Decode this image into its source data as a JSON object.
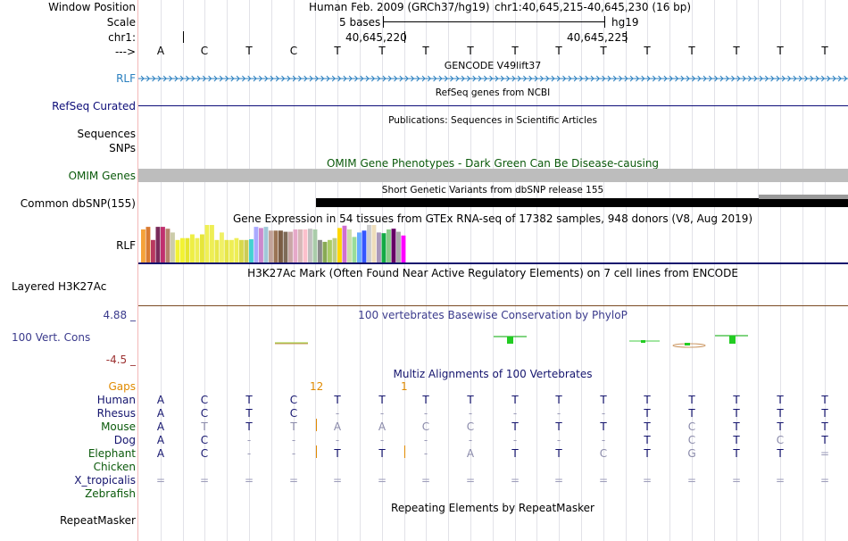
{
  "header": {
    "labels": {
      "window_position": "Window Position",
      "scale": "Scale",
      "chrom": "chr1:",
      "strand": "--->"
    },
    "assembly_text": "Human Feb. 2009 (GRCh37/hg19)",
    "position_text": "chr1:40,645,215-40,645,230 (16 bp)",
    "scale_text": "5 bases",
    "scale_db": "hg19",
    "coord_1": "40,645,220",
    "coord_2": "40,645,225"
  },
  "sequence": [
    "A",
    "C",
    "T",
    "C",
    "T",
    "T",
    "T",
    "T",
    "T",
    "T",
    "T",
    "T",
    "T",
    "T",
    "T",
    "T"
  ],
  "tracks": {
    "gencode": {
      "title": "GENCODE V49lift37",
      "label": "RLF",
      "color": "#2a7fbf"
    },
    "refseq": {
      "title": "RefSeq genes from NCBI",
      "label": "RefSeq Curated",
      "color": "#0c0c78"
    },
    "publications": {
      "title": "Publications: Sequences in Scientific Articles"
    },
    "snps": {
      "label_1": "Sequences",
      "label_2": "SNPs"
    },
    "omim": {
      "title": "OMIM Gene Phenotypes - Dark Green Can Be Disease-causing",
      "label": "OMIM Genes",
      "color": "#0b5a0b"
    },
    "dbsnp": {
      "title": "Short Genetic Variants from dbSNP release 155",
      "label": "Common dbSNP(155)"
    },
    "gtex": {
      "title": "Gene Expression in 54 tissues from GTEx RNA-seq of 17382 samples, 948 donors (V8, Aug 2019)",
      "label": "RLF",
      "tissue_values": [
        0.88,
        0.95,
        0.6,
        0.95,
        0.95,
        0.9,
        0.8,
        0.6,
        0.65,
        0.65,
        0.75,
        0.65,
        0.75,
        1.0,
        1.0,
        0.6,
        0.8,
        0.6,
        0.6,
        0.65,
        0.6,
        0.6,
        0.62,
        0.95,
        0.92,
        0.95,
        0.85,
        0.85,
        0.85,
        0.82,
        0.82,
        0.88,
        0.88,
        0.88,
        0.9,
        0.88,
        0.6,
        0.55,
        0.6,
        0.65,
        0.92,
        0.98,
        0.88,
        0.68,
        0.8,
        0.85,
        1.0,
        1.0,
        0.8,
        0.78,
        0.88,
        0.9,
        0.82,
        0.72
      ],
      "tissue_colors": [
        "#f5a23a",
        "#d97b32",
        "#b8385f",
        "#7a2a5a",
        "#c0306f",
        "#b5826a",
        "#ccccaa",
        "#f2f233",
        "#f2f233",
        "#e6e62f",
        "#eeee44",
        "#eeee55",
        "#e6e63a",
        "#f0f055",
        "#eeee55",
        "#e8e84a",
        "#f0f066",
        "#e6e64a",
        "#eeee55",
        "#eeee55",
        "#d8d84a",
        "#cccc55",
        "#44d2d2",
        "#aaaaff",
        "#cc88cc",
        "#a0c8d8",
        "#c2a39a",
        "#9a7455",
        "#7a5c44",
        "#7e6a58",
        "#c9a6a6",
        "#e6a9c9",
        "#d6b8b8",
        "#fcc0cc",
        "#c0c0c0",
        "#aaccaa",
        "#8a8a8a",
        "#88aa55",
        "#aacc66",
        "#bbcc88",
        "#ffd700",
        "#d070d0",
        "#ccddaa",
        "#99dd99",
        "#66aaff",
        "#3355ff",
        "#cccccc",
        "#eeddbb",
        "#aa99bb",
        "#11aa44",
        "#88cc88",
        "#660066",
        "#aaaaaa",
        "#ff00ff"
      ]
    },
    "h3k27ac": {
      "title": "H3K27Ac Mark (Often Found Near Active Regulatory Elements) on 7 cell lines from ENCODE",
      "label": "Layered H3K27Ac"
    },
    "phylop": {
      "title": "100 vertebrates Basewise Conservation by PhyloP",
      "label": "100 Vert. Cons",
      "max": "4.88 _",
      "min": "-4.5 _",
      "max_color": "#3a3a8c",
      "min_color": "#9c3030",
      "title_color": "#3a3a8c"
    },
    "multiz": {
      "title": "Multiz Alignments of 100 Vertebrates",
      "gaps_label": "Gaps",
      "gap_1": "12",
      "gap_2": "1",
      "gap_color": "#e08a00",
      "species": [
        {
          "name": "Human",
          "bases": [
            "A",
            "C",
            "T",
            "C",
            "T",
            "T",
            "T",
            "T",
            "T",
            "T",
            "T",
            "T",
            "T",
            "T",
            "T",
            "T"
          ]
        },
        {
          "name": "Rhesus",
          "bases": [
            "A",
            "C",
            "T",
            "C",
            "-",
            "-",
            "-",
            "-",
            "-",
            "-",
            "-",
            "T",
            "T",
            "T",
            "T",
            "T"
          ]
        },
        {
          "name": "Mouse",
          "bases": [
            "A",
            "T",
            "T",
            "T",
            "A",
            "A",
            "C",
            "C",
            "T",
            "T",
            "T",
            "T",
            "C",
            "T",
            "T",
            "T"
          ]
        },
        {
          "name": "Dog",
          "bases": [
            "A",
            "C",
            "-",
            "-",
            "-",
            "-",
            "-",
            "-",
            "-",
            "-",
            "-",
            "T",
            "C",
            "T",
            "C",
            "T"
          ]
        },
        {
          "name": "Elephant",
          "bases": [
            "A",
            "C",
            "-",
            "-",
            "T",
            "T",
            "-",
            "A",
            "T",
            "T",
            "C",
            "T",
            "G",
            "T",
            "T",
            "="
          ]
        },
        {
          "name": "Chicken",
          "bases": [
            "",
            "",
            "",
            "",
            "",
            "",
            "",
            "",
            "",
            "",
            "",
            "",
            "",
            "",
            "",
            ""
          ]
        },
        {
          "name": "X_tropicalis",
          "bases": [
            "=",
            "=",
            "=",
            "=",
            "=",
            "=",
            "=",
            "=",
            "=",
            "=",
            "=",
            "=",
            "=",
            "=",
            "=",
            "="
          ]
        },
        {
          "name": "Zebrafish",
          "bases": [
            "",
            "",
            "",
            "",
            "",
            "",
            "",
            "",
            "",
            "",
            "",
            "",
            "",
            "",
            "",
            ""
          ]
        }
      ]
    },
    "repeatmasker": {
      "title": "Repeating Elements by RepeatMasker",
      "label": "RepeatMasker"
    }
  }
}
